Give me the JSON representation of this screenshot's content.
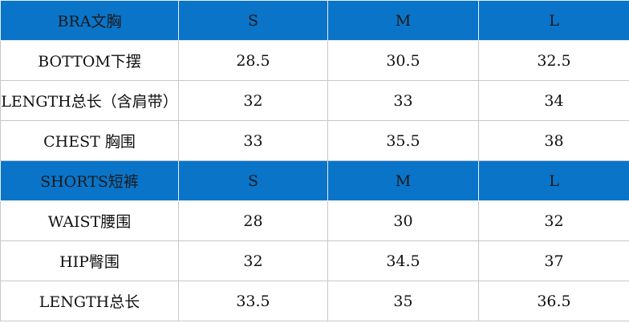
{
  "table": {
    "sections": [
      {
        "header": [
          "BRA文胸",
          "S",
          "M",
          "L"
        ],
        "rows": [
          [
            "BOTTOM下摆",
            "28.5",
            "30.5",
            "32.5"
          ],
          [
            "LENGTH总长（含肩带）",
            "32",
            "33",
            "34"
          ],
          [
            "CHEST 胸围",
            "33",
            "35.5",
            "38"
          ]
        ]
      },
      {
        "header": [
          "SHORTS短裤",
          "S",
          "M",
          "L"
        ],
        "rows": [
          [
            "WAIST腰围",
            "28",
            "30",
            "32"
          ],
          [
            "HIP臀围",
            "32",
            "34.5",
            "37"
          ],
          [
            "LENGTH总长",
            "33.5",
            "35",
            "36.5"
          ]
        ]
      }
    ]
  }
}
